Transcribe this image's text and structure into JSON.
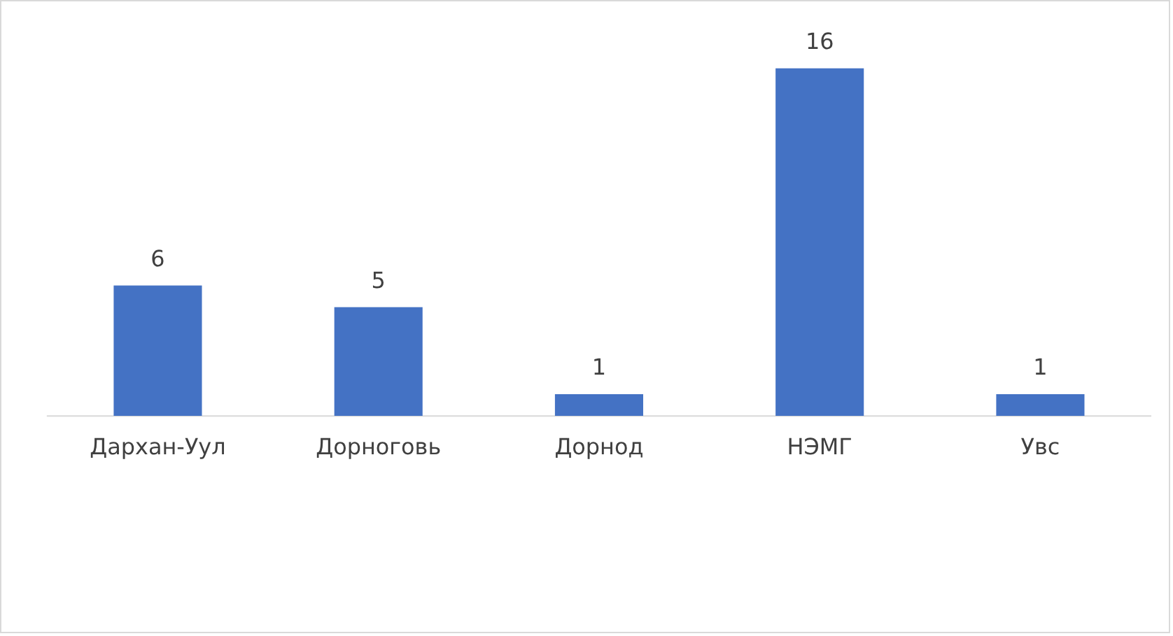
{
  "chart_data": {
    "type": "bar",
    "categories": [
      "Дархан-Уул",
      "Дорноговь",
      "Дорнод",
      "НЭМГ",
      "Увс"
    ],
    "values": [
      6,
      5,
      1,
      16,
      1
    ],
    "color": "#4472c4",
    "data_labels": true,
    "tick_labels": "x",
    "grid": false,
    "legend": false
  }
}
